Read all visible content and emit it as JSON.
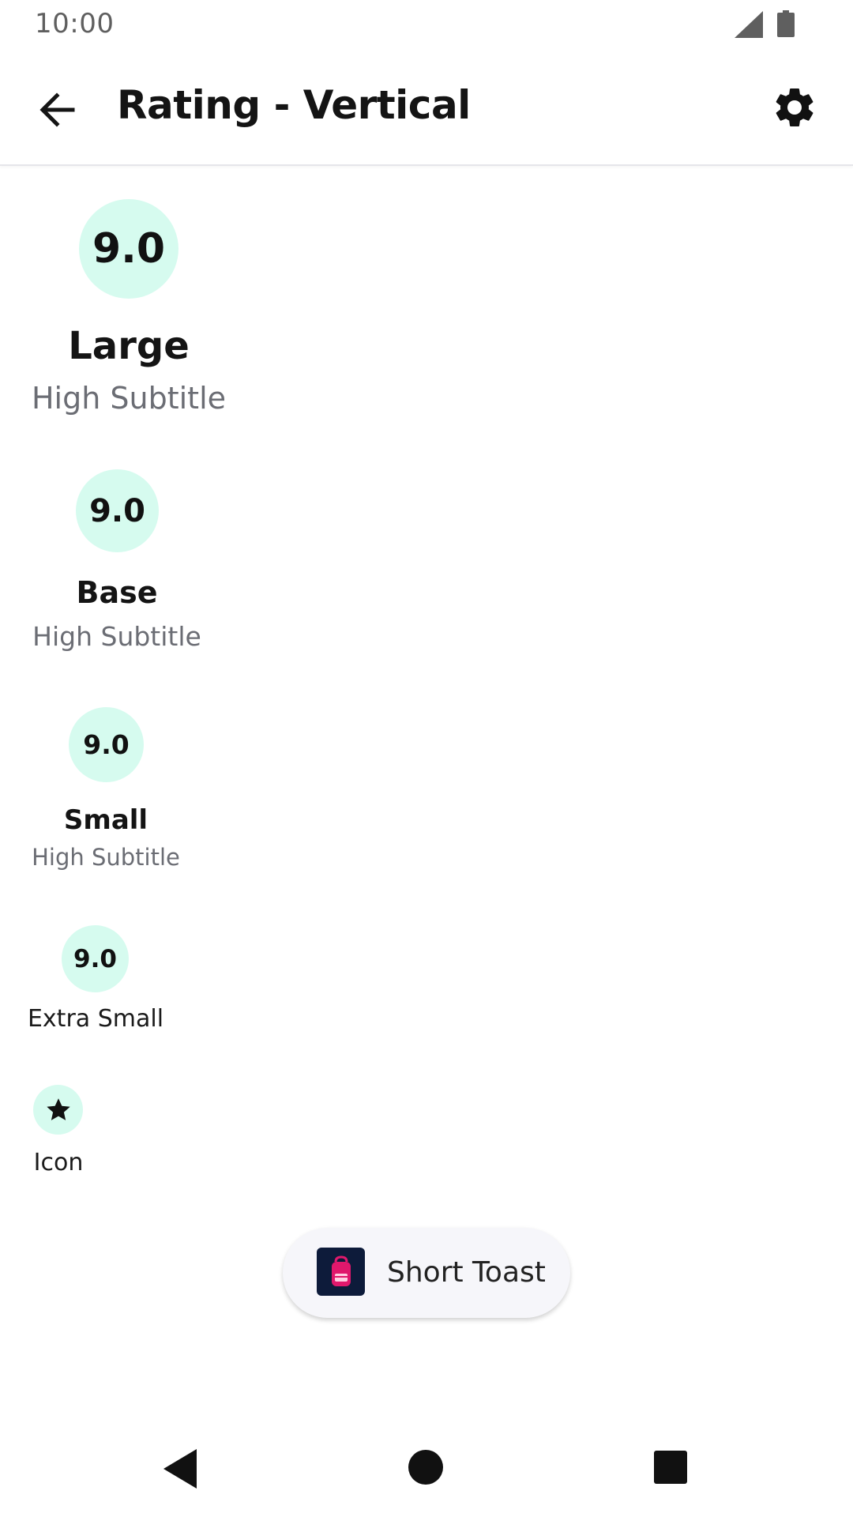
{
  "status_bar": {
    "time": "10:00"
  },
  "app_bar": {
    "title": "Rating - Vertical"
  },
  "accent_colors": {
    "badge_background": "#d6fbef",
    "toast_icon_background": "#0d1b3a",
    "toast_icon_accent": "#e0186c"
  },
  "ratings": [
    {
      "value": "9.0",
      "label": "Large",
      "subtitle": "High Subtitle"
    },
    {
      "value": "9.0",
      "label": "Base",
      "subtitle": "High Subtitle"
    },
    {
      "value": "9.0",
      "label": "Small",
      "subtitle": "High Subtitle"
    },
    {
      "value": "9.0",
      "label": "Extra Small"
    },
    {
      "icon": "star-icon",
      "label": "Icon"
    }
  ],
  "toast": {
    "icon": "backpack-icon",
    "text": "Short Toast"
  },
  "nav_bar": {
    "back": "triangle-back-icon",
    "home": "circle-home-icon",
    "recents": "square-recents-icon"
  }
}
